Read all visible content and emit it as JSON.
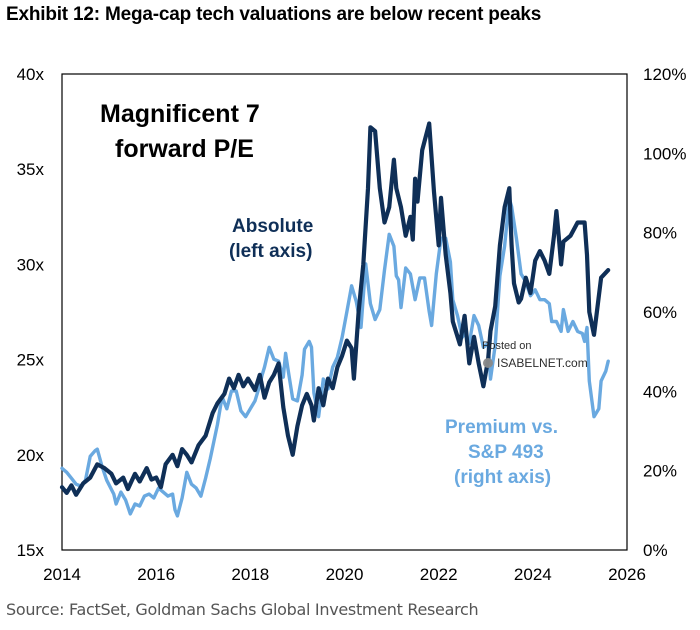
{
  "title": "Exhibit 12: Mega-cap tech valuations are below recent peaks",
  "source": "Source: FactSet, Goldman Sachs Global Investment Research",
  "watermark": {
    "line1": "Posted on",
    "line2": "ISABELNET.com"
  },
  "chart_data": {
    "type": "line",
    "annotations": {
      "main_line1": "Magnificent 7",
      "main_line2": "forward P/E",
      "absolute_line1": "Absolute",
      "absolute_line2": "(left axis)",
      "premium_line1": "Premium vs.",
      "premium_line2": "S&P 493",
      "premium_line3": "(right axis)"
    },
    "x_ticks": [
      "2014",
      "2016",
      "2018",
      "2020",
      "2022",
      "2024",
      "2026"
    ],
    "y_left_ticks": [
      "15x",
      "20x",
      "25x",
      "30x",
      "35x",
      "40x"
    ],
    "y_right_ticks": [
      "0%",
      "20%",
      "40%",
      "60%",
      "80%",
      "100%",
      "120%"
    ],
    "xlim": [
      2014,
      2026
    ],
    "ylim_left": [
      15,
      40
    ],
    "ylim_right": [
      0,
      120
    ],
    "grid": false,
    "series": [
      {
        "name": "Absolute",
        "axis": "left",
        "color": "#0f2f57",
        "points": [
          [
            2014.0,
            18.3
          ],
          [
            2014.1,
            18.0
          ],
          [
            2014.2,
            18.4
          ],
          [
            2014.3,
            17.9
          ],
          [
            2014.45,
            18.5
          ],
          [
            2014.6,
            18.8
          ],
          [
            2014.75,
            19.5
          ],
          [
            2014.9,
            19.3
          ],
          [
            2015.05,
            19.0
          ],
          [
            2015.15,
            18.5
          ],
          [
            2015.3,
            18.8
          ],
          [
            2015.4,
            18.2
          ],
          [
            2015.55,
            19.0
          ],
          [
            2015.65,
            18.6
          ],
          [
            2015.8,
            19.3
          ],
          [
            2015.9,
            18.7
          ],
          [
            2016.0,
            18.8
          ],
          [
            2016.1,
            18.3
          ],
          [
            2016.2,
            19.5
          ],
          [
            2016.35,
            20.0
          ],
          [
            2016.45,
            19.4
          ],
          [
            2016.55,
            20.3
          ],
          [
            2016.65,
            20.0
          ],
          [
            2016.75,
            19.6
          ],
          [
            2016.9,
            20.5
          ],
          [
            2017.05,
            21.0
          ],
          [
            2017.2,
            22.2
          ],
          [
            2017.3,
            22.7
          ],
          [
            2017.45,
            23.2
          ],
          [
            2017.55,
            24.0
          ],
          [
            2017.65,
            23.5
          ],
          [
            2017.75,
            24.2
          ],
          [
            2017.85,
            23.6
          ],
          [
            2017.95,
            24.0
          ],
          [
            2018.1,
            23.4
          ],
          [
            2018.2,
            24.2
          ],
          [
            2018.3,
            23.0
          ],
          [
            2018.4,
            23.8
          ],
          [
            2018.5,
            24.2
          ],
          [
            2018.6,
            24.8
          ],
          [
            2018.7,
            22.5
          ],
          [
            2018.8,
            21.0
          ],
          [
            2018.9,
            20.0
          ],
          [
            2019.0,
            21.5
          ],
          [
            2019.1,
            22.6
          ],
          [
            2019.2,
            23.2
          ],
          [
            2019.3,
            22.6
          ],
          [
            2019.35,
            21.8
          ],
          [
            2019.45,
            23.5
          ],
          [
            2019.55,
            22.6
          ],
          [
            2019.65,
            24.0
          ],
          [
            2019.75,
            23.5
          ],
          [
            2019.85,
            24.6
          ],
          [
            2019.95,
            25.2
          ],
          [
            2020.05,
            26.0
          ],
          [
            2020.15,
            25.6
          ],
          [
            2020.2,
            24.0
          ],
          [
            2020.3,
            27.5
          ],
          [
            2020.4,
            30.0
          ],
          [
            2020.5,
            34.0
          ],
          [
            2020.55,
            37.2
          ],
          [
            2020.65,
            37.0
          ],
          [
            2020.75,
            34.0
          ],
          [
            2020.85,
            32.2
          ],
          [
            2020.95,
            33.0
          ],
          [
            2021.05,
            35.5
          ],
          [
            2021.1,
            34.0
          ],
          [
            2021.2,
            33.0
          ],
          [
            2021.3,
            31.5
          ],
          [
            2021.4,
            32.5
          ],
          [
            2021.45,
            31.3
          ],
          [
            2021.5,
            34.5
          ],
          [
            2021.55,
            33.3
          ],
          [
            2021.65,
            36.0
          ],
          [
            2021.8,
            37.4
          ],
          [
            2021.9,
            33.8
          ],
          [
            2022.0,
            31.0
          ],
          [
            2022.05,
            33.5
          ],
          [
            2022.15,
            30.5
          ],
          [
            2022.25,
            28.5
          ],
          [
            2022.3,
            27.0
          ],
          [
            2022.45,
            25.8
          ],
          [
            2022.55,
            27.3
          ],
          [
            2022.65,
            24.8
          ],
          [
            2022.75,
            26.2
          ],
          [
            2022.85,
            24.8
          ],
          [
            2022.95,
            23.6
          ],
          [
            2023.05,
            25.0
          ],
          [
            2023.1,
            26.5
          ],
          [
            2023.2,
            27.8
          ],
          [
            2023.3,
            31.0
          ],
          [
            2023.4,
            33.0
          ],
          [
            2023.5,
            34.0
          ],
          [
            2023.55,
            31.0
          ],
          [
            2023.6,
            29.0
          ],
          [
            2023.7,
            28.0
          ],
          [
            2023.75,
            28.2
          ],
          [
            2023.85,
            29.3
          ],
          [
            2023.95,
            28.5
          ],
          [
            2024.05,
            30.2
          ],
          [
            2024.15,
            30.7
          ],
          [
            2024.25,
            30.2
          ],
          [
            2024.35,
            29.5
          ],
          [
            2024.45,
            31.5
          ],
          [
            2024.5,
            32.8
          ],
          [
            2024.55,
            31.5
          ],
          [
            2024.6,
            30.0
          ],
          [
            2024.65,
            31.2
          ],
          [
            2024.8,
            31.5
          ],
          [
            2024.95,
            32.2
          ],
          [
            2025.1,
            32.2
          ],
          [
            2025.15,
            30.5
          ],
          [
            2025.2,
            27.5
          ],
          [
            2025.3,
            26.3
          ],
          [
            2025.35,
            27.3
          ],
          [
            2025.45,
            29.3
          ],
          [
            2025.6,
            29.7
          ]
        ]
      },
      {
        "name": "Premium vs. S&P 493",
        "axis": "right",
        "color": "#6aa9e0",
        "points": [
          [
            2014.0,
            20.6
          ],
          [
            2014.1,
            19.6
          ],
          [
            2014.2,
            18.1
          ],
          [
            2014.3,
            16.6
          ],
          [
            2014.4,
            16.1
          ],
          [
            2014.5,
            17.6
          ],
          [
            2014.6,
            23.6
          ],
          [
            2014.7,
            25.0
          ],
          [
            2014.75,
            25.4
          ],
          [
            2014.85,
            21.1
          ],
          [
            2014.95,
            17.6
          ],
          [
            2015.1,
            14.1
          ],
          [
            2015.15,
            11.6
          ],
          [
            2015.25,
            14.6
          ],
          [
            2015.35,
            12.6
          ],
          [
            2015.45,
            9.1
          ],
          [
            2015.55,
            11.6
          ],
          [
            2015.65,
            11.1
          ],
          [
            2015.75,
            13.6
          ],
          [
            2015.85,
            14.1
          ],
          [
            2015.95,
            13.1
          ],
          [
            2016.05,
            15.6
          ],
          [
            2016.15,
            14.6
          ],
          [
            2016.25,
            13.6
          ],
          [
            2016.35,
            14.1
          ],
          [
            2016.4,
            10.1
          ],
          [
            2016.45,
            8.6
          ],
          [
            2016.55,
            13.1
          ],
          [
            2016.65,
            19.6
          ],
          [
            2016.75,
            16.6
          ],
          [
            2016.85,
            15.6
          ],
          [
            2016.95,
            13.6
          ],
          [
            2017.05,
            18.1
          ],
          [
            2017.15,
            23.1
          ],
          [
            2017.3,
            31.6
          ],
          [
            2017.4,
            38.6
          ],
          [
            2017.5,
            35.6
          ],
          [
            2017.6,
            40.1
          ],
          [
            2017.7,
            40.1
          ],
          [
            2017.8,
            35.1
          ],
          [
            2017.9,
            33.6
          ],
          [
            2018.0,
            35.6
          ],
          [
            2018.1,
            37.6
          ],
          [
            2018.2,
            41.6
          ],
          [
            2018.25,
            44.1
          ],
          [
            2018.3,
            46.1
          ],
          [
            2018.4,
            51.1
          ],
          [
            2018.5,
            48.1
          ],
          [
            2018.6,
            47.6
          ],
          [
            2018.7,
            43.6
          ],
          [
            2018.75,
            49.6
          ],
          [
            2018.8,
            45.6
          ],
          [
            2018.9,
            38.1
          ],
          [
            2019.0,
            37.6
          ],
          [
            2019.1,
            44.1
          ],
          [
            2019.15,
            50.6
          ],
          [
            2019.25,
            52.6
          ],
          [
            2019.3,
            51.1
          ],
          [
            2019.35,
            39.6
          ],
          [
            2019.45,
            33.6
          ],
          [
            2019.55,
            43.1
          ],
          [
            2019.65,
            40.6
          ],
          [
            2019.75,
            46.1
          ],
          [
            2019.85,
            48.6
          ],
          [
            2019.95,
            53.6
          ],
          [
            2020.05,
            60.1
          ],
          [
            2020.15,
            66.6
          ],
          [
            2020.25,
            62.6
          ],
          [
            2020.35,
            56.1
          ],
          [
            2020.45,
            72.1
          ],
          [
            2020.55,
            62.1
          ],
          [
            2020.65,
            58.1
          ],
          [
            2020.75,
            60.6
          ],
          [
            2020.85,
            70.6
          ],
          [
            2020.95,
            79.6
          ],
          [
            2021.05,
            76.6
          ],
          [
            2021.1,
            69.1
          ],
          [
            2021.15,
            68.1
          ],
          [
            2021.2,
            61.1
          ],
          [
            2021.3,
            71.1
          ],
          [
            2021.4,
            69.6
          ],
          [
            2021.5,
            63.1
          ],
          [
            2021.6,
            68.6
          ],
          [
            2021.7,
            68.6
          ],
          [
            2021.8,
            60.1
          ],
          [
            2021.85,
            56.6
          ],
          [
            2021.95,
            69.6
          ],
          [
            2022.05,
            78.6
          ],
          [
            2022.15,
            78.6
          ],
          [
            2022.25,
            72.6
          ],
          [
            2022.3,
            63.1
          ],
          [
            2022.4,
            59.1
          ],
          [
            2022.5,
            53.6
          ],
          [
            2022.55,
            54.6
          ],
          [
            2022.65,
            52.1
          ],
          [
            2022.75,
            59.1
          ],
          [
            2022.85,
            56.6
          ],
          [
            2022.95,
            51.1
          ],
          [
            2023.05,
            52.1
          ],
          [
            2023.1,
            43.1
          ],
          [
            2023.2,
            51.6
          ],
          [
            2023.3,
            69.1
          ],
          [
            2023.4,
            76.6
          ],
          [
            2023.5,
            88.6
          ],
          [
            2023.55,
            86.6
          ],
          [
            2023.65,
            78.6
          ],
          [
            2023.75,
            69.6
          ],
          [
            2023.85,
            67.6
          ],
          [
            2023.95,
            64.1
          ],
          [
            2024.05,
            65.6
          ],
          [
            2024.15,
            63.1
          ],
          [
            2024.25,
            63.1
          ],
          [
            2024.35,
            62.1
          ],
          [
            2024.4,
            57.6
          ],
          [
            2024.5,
            57.6
          ],
          [
            2024.6,
            55.1
          ],
          [
            2024.65,
            60.6
          ],
          [
            2024.75,
            55.1
          ],
          [
            2024.85,
            57.6
          ],
          [
            2024.95,
            55.1
          ],
          [
            2025.05,
            54.6
          ],
          [
            2025.1,
            52.6
          ],
          [
            2025.15,
            56.1
          ],
          [
            2025.2,
            42.6
          ],
          [
            2025.3,
            33.6
          ],
          [
            2025.4,
            35.6
          ],
          [
            2025.45,
            42.6
          ],
          [
            2025.55,
            45.1
          ],
          [
            2025.6,
            47.6
          ]
        ]
      }
    ]
  }
}
